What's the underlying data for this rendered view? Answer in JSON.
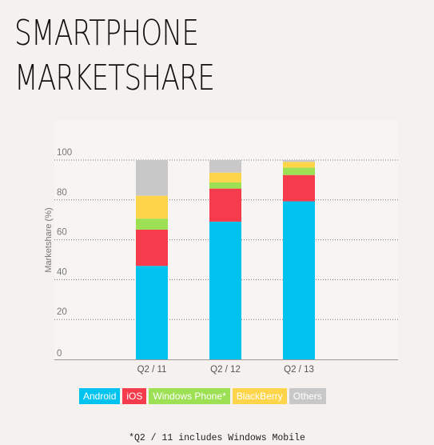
{
  "title": {
    "line1": "SMARTPHONE",
    "line2": "MARKETSHARE"
  },
  "footnote": "*Q2 / 11 includes Windows Mobile",
  "chart_data": {
    "type": "bar",
    "stacked": true,
    "ylabel": "Marketshare (%)",
    "ylim": [
      0,
      100
    ],
    "yticks": [
      0,
      20,
      40,
      60,
      80,
      100
    ],
    "grid": true,
    "legend_position": "bottom",
    "categories": [
      "Q2 / 11",
      "Q2 / 12",
      "Q2 / 13"
    ],
    "series": [
      {
        "name": "Android",
        "color": "#00c3ef",
        "values": [
          46.9,
          69.1,
          79.3
        ]
      },
      {
        "name": "iOS",
        "color": "#f63b4c",
        "values": [
          18.2,
          16.6,
          13.2
        ]
      },
      {
        "name": "Windows Phone*",
        "color": "#9de053",
        "values": [
          5.5,
          3.1,
          3.7
        ]
      },
      {
        "name": "BlackBerry",
        "color": "#fed44a",
        "values": [
          11.5,
          4.9,
          2.9
        ]
      },
      {
        "name": "Others",
        "color": "#c8c8c8",
        "values": [
          17.9,
          6.3,
          0.9
        ]
      }
    ]
  }
}
